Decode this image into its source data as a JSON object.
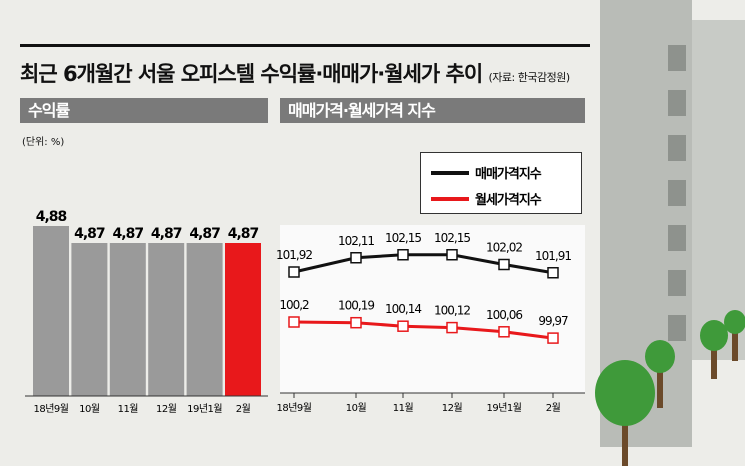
{
  "title": "최근 6개월간 서울 오피스텔 수익률·매매가·월세가 추이",
  "source": "(자료: 한국감정원)",
  "colors": {
    "header": "#7a7a7a",
    "bar": "#9a9a9a",
    "bar_highlight": "#e8181b",
    "sale": "#111111",
    "rent": "#e8181b"
  },
  "chart_data": [
    {
      "type": "bar",
      "title": "수익률",
      "unit": "(단위: %)",
      "categories": [
        "18년9월",
        "10월",
        "11월",
        "12월",
        "19년1월",
        "2월"
      ],
      "values": [
        4.88,
        4.87,
        4.87,
        4.87,
        4.87,
        4.87
      ],
      "labels": [
        "4,88",
        "4,87",
        "4,87",
        "4,87",
        "4,87",
        "4,87"
      ],
      "highlight_index": 5,
      "ylim": [
        4.78,
        4.88
      ]
    },
    {
      "type": "line",
      "title": "매매가격·월세가격 지수",
      "legend_position": "top-right",
      "categories": [
        "18년9월",
        "10월",
        "11월",
        "12월",
        "19년1월",
        "2월"
      ],
      "series": [
        {
          "name": "매매가격지수",
          "values": [
            101.92,
            102.11,
            102.15,
            102.15,
            102.02,
            101.91
          ],
          "labels": [
            "101,92",
            "102,11",
            "102,15",
            "102,15",
            "102,02",
            "101,91"
          ]
        },
        {
          "name": "월세가격지수",
          "values": [
            100.2,
            100.19,
            100.14,
            100.12,
            100.06,
            99.97
          ],
          "labels": [
            "100,2",
            "100,19",
            "100,14",
            "100,12",
            "100,06",
            "99,97"
          ]
        }
      ]
    }
  ]
}
